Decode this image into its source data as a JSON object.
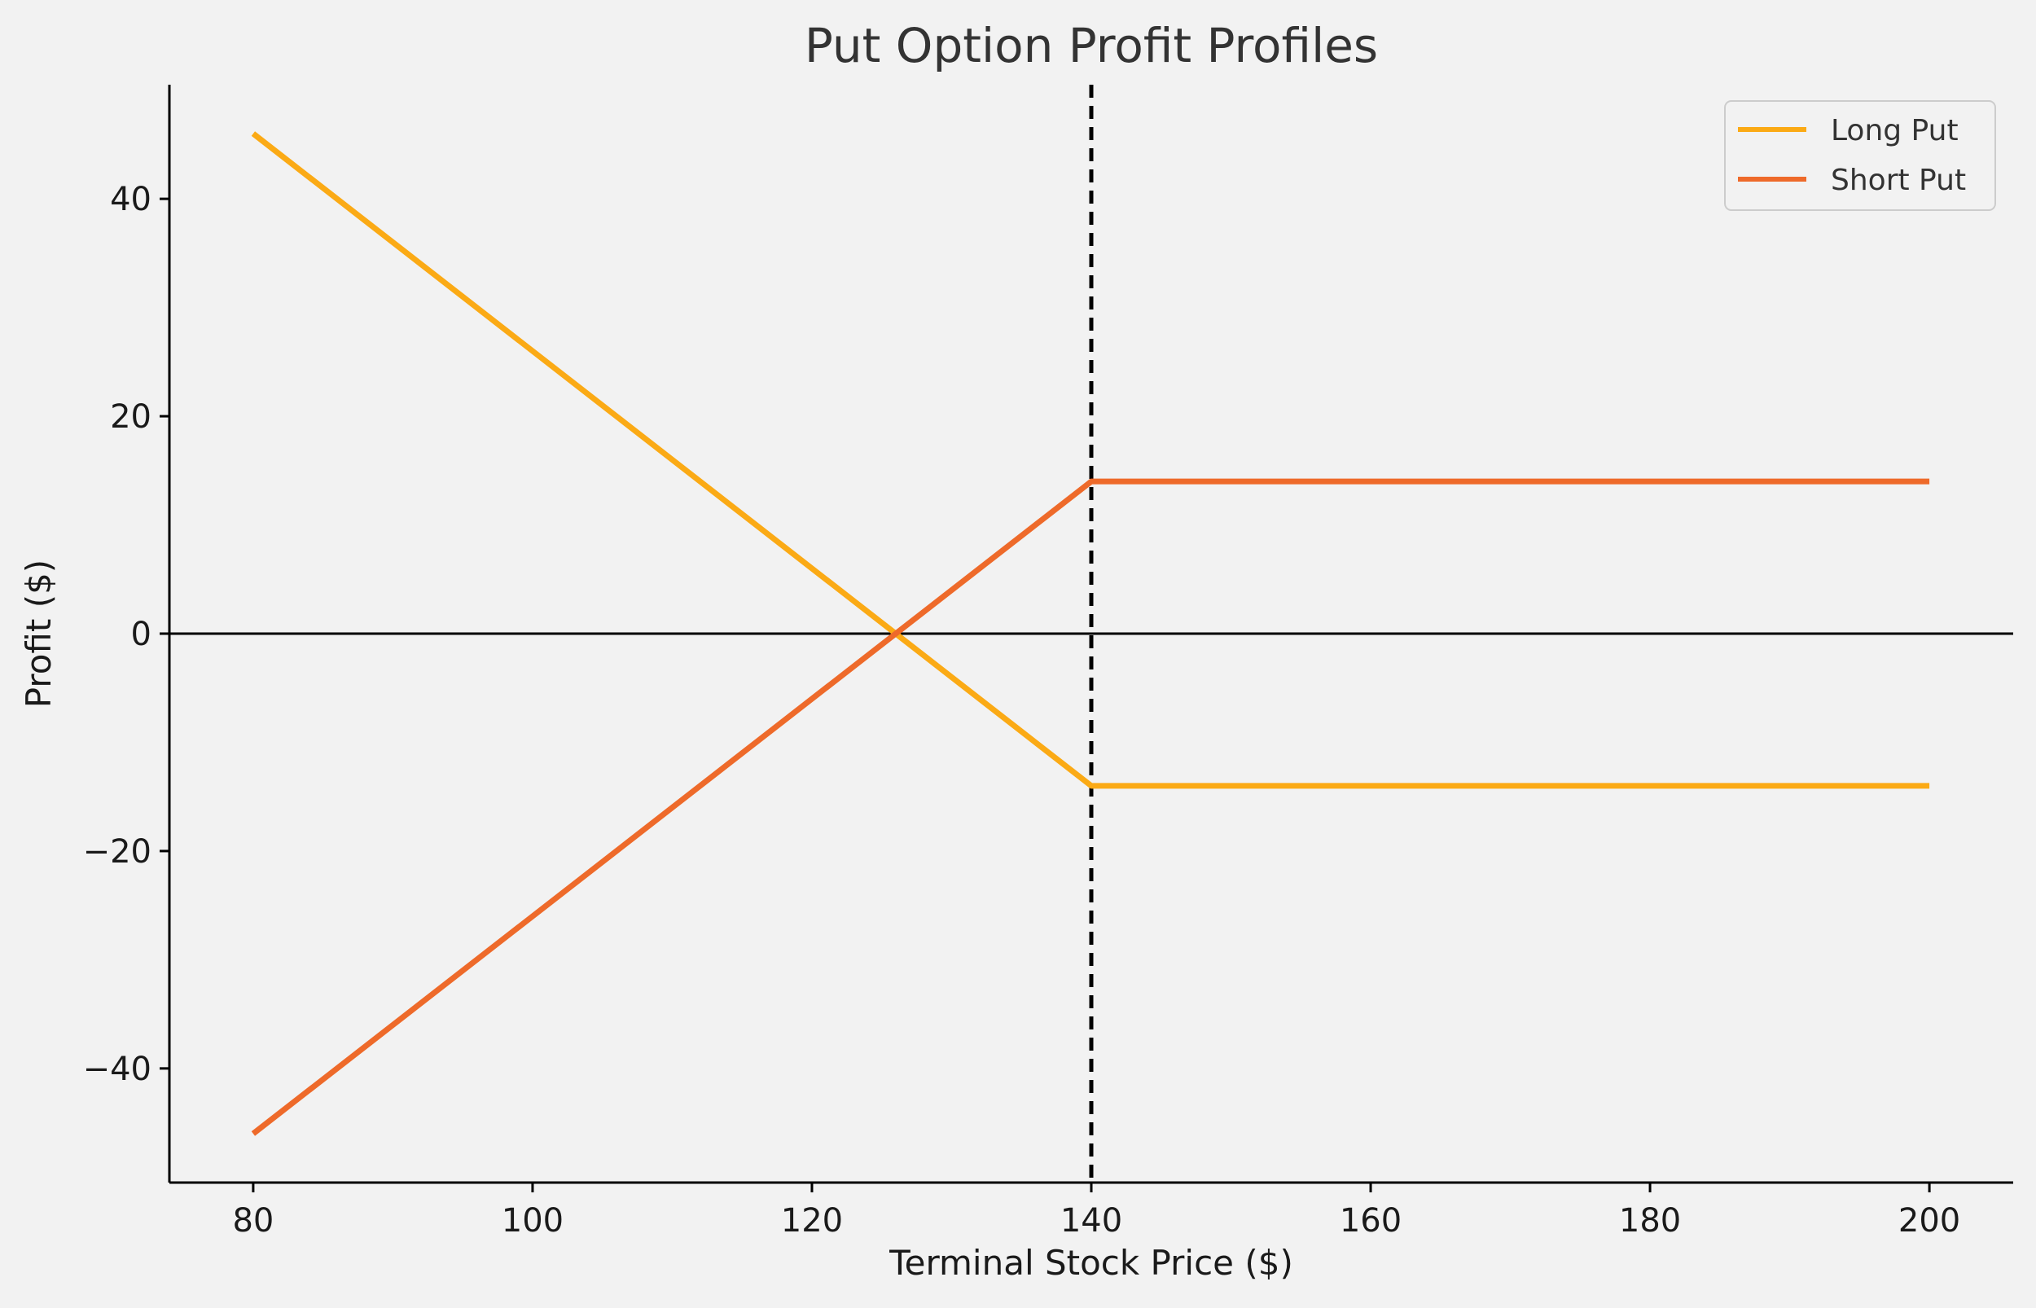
{
  "chart_data": {
    "type": "line",
    "title": "Put Option Profit Profiles",
    "xlabel": "Terminal Stock Price ($)",
    "ylabel": "Profit ($)",
    "xlim": [
      74,
      206
    ],
    "ylim": [
      -50.5,
      50.5
    ],
    "x_ticks": [
      80,
      100,
      120,
      140,
      160,
      180,
      200
    ],
    "y_ticks": [
      -40,
      -20,
      0,
      20,
      40
    ],
    "x_tick_labels": [
      "80",
      "100",
      "120",
      "140",
      "160",
      "180",
      "200"
    ],
    "y_tick_labels": [
      "−40",
      "−20",
      "0",
      "20",
      "40"
    ],
    "grid": false,
    "legend_position": "top-right",
    "series": [
      {
        "name": "Long Put",
        "color": "#fbaa15",
        "points": [
          [
            80,
            46
          ],
          [
            140,
            -14
          ],
          [
            200,
            -14
          ]
        ]
      },
      {
        "name": "Short Put",
        "color": "#ee6a2a",
        "points": [
          [
            80,
            -46
          ],
          [
            140,
            14
          ],
          [
            200,
            14
          ]
        ]
      }
    ],
    "reference_lines": [
      {
        "orientation": "vertical",
        "value": 140,
        "style": "dashed",
        "color": "#000000"
      },
      {
        "orientation": "horizontal",
        "value": 0,
        "style": "solid",
        "color": "#000000"
      }
    ]
  }
}
